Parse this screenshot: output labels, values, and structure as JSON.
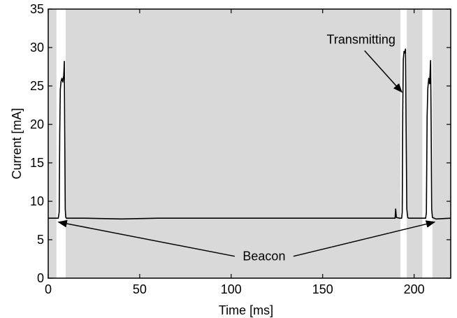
{
  "chart_data": {
    "type": "line",
    "title": "",
    "xlabel": "Time [ms]",
    "ylabel": "Current [mA]",
    "xlim": [
      0,
      220
    ],
    "ylim": [
      0,
      35
    ],
    "xticks": [
      0,
      50,
      100,
      150,
      200
    ],
    "yticks": [
      0,
      5,
      10,
      15,
      20,
      25,
      30,
      35
    ],
    "grid": false,
    "line_color": "#000000",
    "shaded_color": "#d9d9d9",
    "unshaded_intervals": [
      [
        4.5,
        9.5
      ],
      [
        192.5,
        196
      ],
      [
        204.5,
        210
      ]
    ],
    "series": [
      {
        "values_x": [
          0,
          4,
          5.5,
          6,
          6.3,
          6.6,
          7.0,
          7.5,
          8.0,
          8.5,
          8.8,
          9.0,
          9.3,
          9.6,
          10.0,
          20,
          40,
          60,
          80,
          100,
          120,
          140,
          160,
          180,
          189.6,
          189.9,
          190.3,
          192,
          193.2,
          193.5,
          193.8,
          194.1,
          194.5,
          194.9,
          195.3,
          195.6,
          196.0,
          196.5,
          197.0,
          200,
          204,
          206.3,
          206.7,
          207.1,
          207.5,
          208.0,
          208.5,
          209.0,
          209.3,
          209.6,
          210.0,
          212,
          220
        ],
        "values_y": [
          7.8,
          7.8,
          7.8,
          8.6,
          19.0,
          24.5,
          25.6,
          26.0,
          25.5,
          26.4,
          28.2,
          20.0,
          9.0,
          7.9,
          7.8,
          7.8,
          7.7,
          7.8,
          7.8,
          7.8,
          7.8,
          7.8,
          7.8,
          7.8,
          7.8,
          9.0,
          7.9,
          7.8,
          7.8,
          8.6,
          22.0,
          28.5,
          29.5,
          29.3,
          29.8,
          20.0,
          9.0,
          7.9,
          7.8,
          7.8,
          7.8,
          7.8,
          8.5,
          21.0,
          24.7,
          26.0,
          25.3,
          28.3,
          20.0,
          9.0,
          7.9,
          7.7,
          7.8
        ]
      }
    ],
    "annotations": [
      {
        "text": "Transmitting",
        "x": 171,
        "y": 30.5,
        "arrow_to": [
          193.3,
          24.2
        ]
      },
      {
        "text": "Beacon",
        "x": 118,
        "y": 2.3,
        "arrow_to": [
          [
            5.6,
            7.3
          ],
          [
            211.2,
            7.3
          ]
        ]
      }
    ]
  }
}
